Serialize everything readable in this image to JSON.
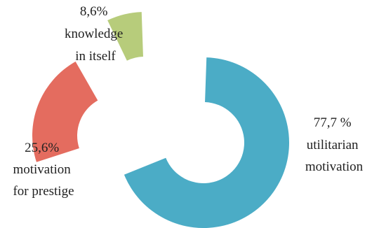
{
  "chart_data": {
    "type": "pie",
    "style": "exploded-donut",
    "slices": [
      {
        "label_value": "77,7 %",
        "label_lines": [
          "utilitarian",
          "motivation"
        ],
        "value": 77.7,
        "color": "#4BACC6"
      },
      {
        "label_value": "25,6%",
        "label_lines": [
          "motivation",
          "for prestige"
        ],
        "value": 25.6,
        "color": "#E46C5F"
      },
      {
        "label_value": "8,6%",
        "label_lines": [
          "knowledge",
          "in itself"
        ],
        "value": 8.6,
        "color": "#B7CC7B"
      }
    ]
  }
}
